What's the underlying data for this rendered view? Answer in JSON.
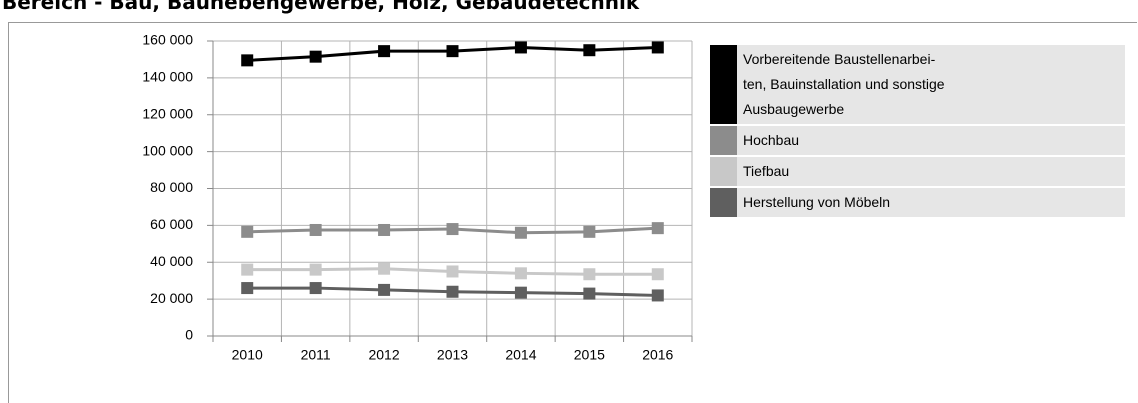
{
  "chart_data": {
    "type": "line",
    "title": "Bereich - Bau, Baunebengewerbe, Holz, Gebäudetechnik",
    "categories": [
      "2010",
      "2011",
      "2012",
      "2013",
      "2014",
      "2015",
      "2016"
    ],
    "series": [
      {
        "name": "Vorbereitende Baustellenarbei-\nten, Bauinstallation und sonstige\nAusbaugewerbe",
        "color": "#000000",
        "values": [
          149500,
          151500,
          154500,
          154500,
          156500,
          155000,
          156500
        ]
      },
      {
        "name": "Hochbau",
        "color": "#8c8c8c",
        "values": [
          56500,
          57500,
          57500,
          58000,
          56000,
          56500,
          58500
        ]
      },
      {
        "name": "Tiefbau",
        "color": "#c8c8c8",
        "values": [
          36000,
          36000,
          36500,
          35000,
          34000,
          33500,
          33500
        ]
      },
      {
        "name": "Herstellung von Möbeln",
        "color": "#5f5f5f",
        "values": [
          26000,
          26000,
          25000,
          24000,
          23500,
          23000,
          22000
        ]
      }
    ],
    "ylim": [
      0,
      160000
    ],
    "yticks": [
      0,
      {
        "value": 20000,
        "label": "20 000"
      },
      {
        "value": 40000,
        "label": "40 000"
      },
      {
        "value": 60000,
        "label": "60 000"
      },
      {
        "value": 80000,
        "label": "80 000"
      },
      {
        "value": 100000,
        "label": "100 000"
      },
      {
        "value": 120000,
        "label": "120 000"
      },
      {
        "value": 140000,
        "label": "140 000"
      },
      {
        "value": 160000,
        "label": "160 000"
      }
    ],
    "grid": true,
    "legend": "right"
  }
}
